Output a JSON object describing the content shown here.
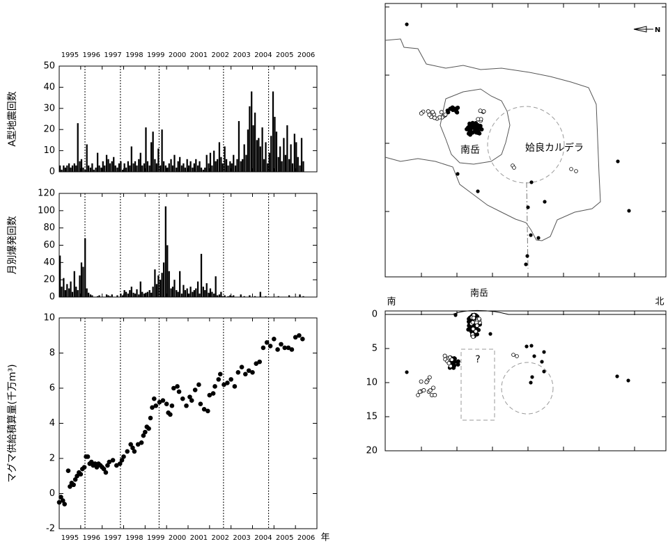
{
  "chart_data": [
    {
      "type": "bar",
      "y_label": "A型地震回数",
      "color": "#000000",
      "x": [
        1995.0,
        1995.08,
        1995.17,
        1995.25,
        1995.33,
        1995.42,
        1995.5,
        1995.58,
        1995.67,
        1995.75,
        1995.83,
        1995.92,
        1996.0,
        1996.08,
        1996.17,
        1996.25,
        1996.33,
        1996.42,
        1996.5,
        1996.58,
        1996.67,
        1996.75,
        1996.83,
        1996.92,
        1997.0,
        1997.08,
        1997.17,
        1997.25,
        1997.33,
        1997.42,
        1997.5,
        1997.58,
        1997.67,
        1997.75,
        1997.83,
        1997.92,
        1998.0,
        1998.08,
        1998.17,
        1998.25,
        1998.33,
        1998.42,
        1998.5,
        1998.58,
        1998.67,
        1998.75,
        1998.83,
        1998.92,
        1999.0,
        1999.08,
        1999.17,
        1999.25,
        1999.33,
        1999.42,
        1999.5,
        1999.58,
        1999.67,
        1999.75,
        1999.83,
        1999.92,
        2000.0,
        2000.08,
        2000.17,
        2000.25,
        2000.33,
        2000.42,
        2000.5,
        2000.58,
        2000.67,
        2000.75,
        2000.83,
        2000.92,
        2001.0,
        2001.08,
        2001.17,
        2001.25,
        2001.33,
        2001.42,
        2001.5,
        2001.58,
        2001.67,
        2001.75,
        2001.83,
        2001.92,
        2002.0,
        2002.08,
        2002.17,
        2002.25,
        2002.33,
        2002.42,
        2002.5,
        2002.58,
        2002.67,
        2002.75,
        2002.83,
        2002.92,
        2003.0,
        2003.08,
        2003.17,
        2003.25,
        2003.33,
        2003.42,
        2003.5,
        2003.58,
        2003.67,
        2003.75,
        2003.83,
        2003.92,
        2004.0,
        2004.08,
        2004.17,
        2004.25,
        2004.33,
        2004.42,
        2004.5,
        2004.58,
        2004.67,
        2004.75,
        2004.83,
        2004.92,
        2005.0,
        2005.08,
        2005.17,
        2005.25,
        2005.33,
        2005.42,
        2005.5,
        2005.58,
        2005.67,
        2005.75,
        2005.83,
        2005.92,
        2006.0,
        2006.08,
        2006.17,
        2006.25,
        2006.33
      ],
      "values": [
        3,
        1,
        3,
        2,
        3,
        4,
        2,
        3,
        4,
        3,
        23,
        5,
        6,
        2,
        1,
        13,
        3,
        2,
        4,
        1,
        2,
        9,
        3,
        2,
        5,
        3,
        8,
        6,
        4,
        5,
        7,
        3,
        2,
        4,
        5,
        1,
        4,
        2,
        5,
        3,
        12,
        4,
        5,
        3,
        6,
        9,
        3,
        4,
        21,
        5,
        3,
        14,
        19,
        6,
        4,
        11,
        3,
        20,
        5,
        3,
        2,
        4,
        6,
        3,
        8,
        2,
        5,
        7,
        3,
        4,
        2,
        6,
        3,
        5,
        2,
        4,
        6,
        3,
        5,
        2,
        1,
        2,
        8,
        4,
        9,
        3,
        10,
        5,
        6,
        14,
        7,
        4,
        12,
        6,
        3,
        5,
        4,
        8,
        3,
        6,
        24,
        5,
        6,
        13,
        8,
        20,
        31,
        38,
        22,
        28,
        15,
        16,
        12,
        21,
        6,
        14,
        4,
        9,
        17,
        38,
        26,
        19,
        7,
        12,
        5,
        16,
        8,
        22,
        6,
        13,
        4,
        18,
        14,
        7,
        3,
        16,
        5
      ],
      "xlim": [
        1995,
        2007
      ],
      "xticks": [
        1995,
        1996,
        1997,
        1998,
        1999,
        2000,
        2001,
        2002,
        2003,
        2004,
        2005,
        2006,
        2007
      ],
      "xtick_labels": [
        {
          "value": 1995.5,
          "label": "1995"
        },
        {
          "value": 1996.5,
          "label": "1996"
        },
        {
          "value": 1997.5,
          "label": "1997"
        },
        {
          "value": 1998.5,
          "label": "1998"
        },
        {
          "value": 1999.5,
          "label": "1999"
        },
        {
          "value": 2000.5,
          "label": "2000"
        },
        {
          "value": 2001.5,
          "label": "2001"
        },
        {
          "value": 2002.5,
          "label": "2002"
        },
        {
          "value": 2003.5,
          "label": "2003"
        },
        {
          "value": 2004.5,
          "label": "2004"
        },
        {
          "value": 2005.5,
          "label": "2005"
        },
        {
          "value": 2006.5,
          "label": "2006"
        }
      ],
      "event_lines": [
        1996.2,
        1997.85,
        1999.65,
        2002.65,
        2004.75
      ],
      "ylim": [
        0,
        50
      ],
      "yticks": [
        0,
        10,
        20,
        30,
        40,
        50
      ]
    },
    {
      "type": "bar",
      "y_label": "月別爆発回数",
      "color": "#000000",
      "x": [
        1995.0,
        1995.08,
        1995.17,
        1995.25,
        1995.33,
        1995.42,
        1995.5,
        1995.58,
        1995.67,
        1995.75,
        1995.83,
        1995.92,
        1996.0,
        1996.08,
        1996.17,
        1996.25,
        1996.33,
        1996.42,
        1996.5,
        1996.58,
        1996.67,
        1996.75,
        1996.83,
        1996.92,
        1997.0,
        1997.08,
        1997.17,
        1997.25,
        1997.33,
        1997.42,
        1997.5,
        1997.58,
        1997.67,
        1997.75,
        1997.83,
        1997.92,
        1998.0,
        1998.08,
        1998.17,
        1998.25,
        1998.33,
        1998.42,
        1998.5,
        1998.58,
        1998.67,
        1998.75,
        1998.83,
        1998.92,
        1999.0,
        1999.08,
        1999.17,
        1999.25,
        1999.33,
        1999.42,
        1999.5,
        1999.58,
        1999.67,
        1999.75,
        1999.83,
        1999.92,
        2000.0,
        2000.08,
        2000.17,
        2000.25,
        2000.33,
        2000.42,
        2000.5,
        2000.58,
        2000.67,
        2000.75,
        2000.83,
        2000.92,
        2001.0,
        2001.08,
        2001.17,
        2001.25,
        2001.33,
        2001.42,
        2001.5,
        2001.58,
        2001.67,
        2001.75,
        2001.83,
        2001.92,
        2002.0,
        2002.08,
        2002.17,
        2002.25,
        2002.33,
        2002.42,
        2002.5,
        2002.58,
        2002.67,
        2002.75,
        2002.83,
        2002.92,
        2003.0,
        2003.08,
        2003.17,
        2003.25,
        2003.33,
        2003.42,
        2003.5,
        2003.58,
        2003.67,
        2003.75,
        2003.83,
        2003.92,
        2004.0,
        2004.08,
        2004.17,
        2004.25,
        2004.33,
        2004.42,
        2004.5,
        2004.58,
        2004.67,
        2004.75,
        2004.83,
        2004.92,
        2005.0,
        2005.08,
        2005.17,
        2005.25,
        2005.33,
        2005.42,
        2005.5,
        2005.58,
        2005.67,
        2005.75,
        2005.83,
        2005.92,
        2006.0,
        2006.08,
        2006.17,
        2006.25,
        2006.33
      ],
      "values": [
        48,
        12,
        22,
        8,
        15,
        10,
        18,
        6,
        30,
        12,
        8,
        25,
        40,
        35,
        68,
        10,
        5,
        3,
        2,
        0,
        0,
        1,
        2,
        0,
        0,
        0,
        3,
        2,
        1,
        3,
        0,
        0,
        2,
        0,
        4,
        2,
        8,
        6,
        4,
        8,
        12,
        5,
        4,
        9,
        3,
        18,
        6,
        4,
        5,
        6,
        8,
        5,
        12,
        32,
        15,
        25,
        20,
        28,
        40,
        105,
        60,
        30,
        10,
        12,
        20,
        8,
        6,
        30,
        4,
        14,
        8,
        10,
        4,
        12,
        6,
        8,
        10,
        18,
        4,
        50,
        12,
        8,
        16,
        5,
        10,
        6,
        4,
        24,
        2,
        3,
        6,
        1,
        2,
        0,
        1,
        2,
        1,
        2,
        0,
        0,
        0,
        3,
        0,
        1,
        0,
        0,
        2,
        0,
        0,
        1,
        0,
        0,
        6,
        0,
        0,
        1,
        0,
        0,
        0,
        0,
        0,
        0,
        1,
        0,
        0,
        0,
        0,
        0,
        2,
        0,
        0,
        0,
        0,
        0,
        3,
        0,
        1
      ],
      "xlim": [
        1995,
        2007
      ],
      "xticks": [
        1995,
        1996,
        1997,
        1998,
        1999,
        2000,
        2001,
        2002,
        2003,
        2004,
        2005,
        2006,
        2007
      ],
      "event_lines": [
        1996.2,
        1997.85,
        1999.65,
        2002.65,
        2004.75
      ],
      "ylim": [
        0,
        120
      ],
      "yticks": [
        0,
        20,
        40,
        60,
        80,
        100,
        120
      ]
    },
    {
      "type": "scatter",
      "y_label": "マグマ供給積算量(千万m³)",
      "x_label": "年",
      "color": "#000000",
      "x": [
        1995.0,
        1995.08,
        1995.17,
        1995.25,
        1995.42,
        1995.5,
        1995.58,
        1995.67,
        1995.75,
        1995.83,
        1995.92,
        1996.0,
        1996.08,
        1996.17,
        1996.25,
        1996.33,
        1996.42,
        1996.5,
        1996.58,
        1996.67,
        1996.75,
        1996.83,
        1996.92,
        1997.0,
        1997.08,
        1997.17,
        1997.25,
        1997.33,
        1997.5,
        1997.67,
        1997.83,
        1997.92,
        1998.0,
        1998.17,
        1998.33,
        1998.42,
        1998.5,
        1998.67,
        1998.83,
        1998.92,
        1999.0,
        1999.08,
        1999.17,
        1999.25,
        1999.33,
        1999.42,
        1999.5,
        1999.67,
        1999.83,
        2000.0,
        2000.08,
        2000.17,
        2000.25,
        2000.33,
        2000.5,
        2000.58,
        2000.75,
        2000.92,
        2001.08,
        2001.17,
        2001.33,
        2001.5,
        2001.58,
        2001.75,
        2001.92,
        2002.0,
        2002.17,
        2002.25,
        2002.42,
        2002.5,
        2002.67,
        2002.83,
        2003.0,
        2003.17,
        2003.33,
        2003.5,
        2003.67,
        2003.83,
        2004.0,
        2004.17,
        2004.33,
        2004.5,
        2004.67,
        2004.83,
        2005.0,
        2005.17,
        2005.33,
        2005.5,
        2005.67,
        2005.83,
        2006.0,
        2006.17,
        2006.33
      ],
      "values": [
        -0.5,
        -0.2,
        -0.4,
        -0.6,
        1.3,
        0.4,
        0.6,
        0.5,
        0.8,
        1.0,
        1.2,
        1.1,
        1.4,
        1.5,
        2.1,
        2.1,
        1.7,
        1.8,
        1.6,
        1.7,
        1.5,
        1.7,
        1.6,
        1.5,
        1.4,
        1.2,
        1.6,
        1.8,
        1.9,
        1.6,
        1.7,
        1.9,
        2.1,
        2.4,
        2.8,
        2.6,
        2.4,
        2.8,
        2.9,
        3.3,
        3.5,
        3.8,
        3.7,
        4.3,
        4.9,
        5.4,
        5.0,
        5.2,
        5.3,
        5.1,
        4.6,
        4.5,
        5.0,
        6.0,
        6.1,
        5.8,
        5.4,
        5.0,
        5.5,
        5.3,
        5.9,
        6.2,
        5.1,
        4.8,
        4.7,
        5.6,
        5.7,
        6.1,
        6.5,
        6.8,
        6.2,
        6.3,
        6.5,
        6.1,
        6.9,
        7.2,
        6.8,
        7.0,
        6.9,
        7.4,
        7.5,
        8.3,
        8.6,
        8.4,
        8.8,
        8.2,
        8.5,
        8.3,
        8.3,
        8.2,
        8.9,
        9.0,
        8.8
      ],
      "xlim": [
        1995,
        2007
      ],
      "xticks": [
        1995,
        1996,
        1997,
        1998,
        1999,
        2000,
        2001,
        2002,
        2003,
        2004,
        2005,
        2006,
        2007
      ],
      "xtick_labels": [
        {
          "value": 1995.5,
          "label": "1995"
        },
        {
          "value": 1996.5,
          "label": "1996"
        },
        {
          "value": 1997.5,
          "label": "1997"
        },
        {
          "value": 1998.5,
          "label": "1998"
        },
        {
          "value": 1999.5,
          "label": "1999"
        },
        {
          "value": 2000.5,
          "label": "2000"
        },
        {
          "value": 2001.5,
          "label": "2001"
        },
        {
          "value": 2002.5,
          "label": "2002"
        },
        {
          "value": 2003.5,
          "label": "2003"
        },
        {
          "value": 2004.5,
          "label": "2004"
        },
        {
          "value": 2005.5,
          "label": "2005"
        },
        {
          "value": 2006.5,
          "label": "2006"
        }
      ],
      "event_lines": [
        1996.2,
        1997.85,
        1999.65,
        2002.65,
        2004.75
      ],
      "ylim": [
        -2,
        10
      ],
      "yticks": [
        -2,
        0,
        2,
        4,
        6,
        8,
        10
      ]
    }
  ],
  "map": {
    "north": "N",
    "peak_label": "南岳",
    "caldera_label": "姶良カルデラ"
  },
  "cross_section": {
    "south": "南",
    "north": "北",
    "peak_label": "南岳",
    "unknown": "?",
    "ylim": [
      0,
      20
    ],
    "yticks": [
      0,
      5,
      10,
      15,
      20
    ]
  }
}
